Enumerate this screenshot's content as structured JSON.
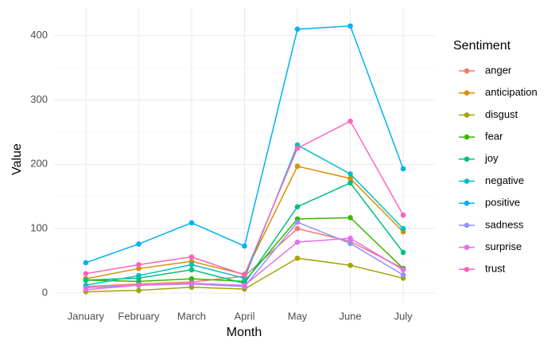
{
  "chart_data": {
    "type": "line",
    "x_label": "Month",
    "y_label": "Value",
    "legend_title": "Sentiment",
    "legend_position": "right",
    "grid": true,
    "categories": [
      "January",
      "February",
      "March",
      "April",
      "May",
      "June",
      "July"
    ],
    "ylim": [
      -15,
      443
    ],
    "yticks": [
      0,
      100,
      200,
      300,
      400
    ],
    "series": [
      {
        "name": "anger",
        "color": "#F8766D",
        "values": [
          10,
          14,
          17,
          26,
          100,
          80,
          38
        ]
      },
      {
        "name": "anticipation",
        "color": "#D89000",
        "values": [
          22,
          38,
          49,
          29,
          197,
          178,
          95
        ]
      },
      {
        "name": "disgust",
        "color": "#A3A500",
        "values": [
          2,
          4,
          9,
          6,
          54,
          43,
          23
        ]
      },
      {
        "name": "fear",
        "color": "#39B600",
        "values": [
          20,
          18,
          22,
          18,
          115,
          117,
          38
        ]
      },
      {
        "name": "joy",
        "color": "#00BF7D",
        "values": [
          20,
          23,
          36,
          15,
          134,
          171,
          63
        ]
      },
      {
        "name": "negative",
        "color": "#00BFC4",
        "values": [
          12,
          27,
          44,
          23,
          230,
          185,
          100
        ]
      },
      {
        "name": "positive",
        "color": "#00B0F6",
        "values": [
          47,
          76,
          109,
          73,
          410,
          415,
          193
        ]
      },
      {
        "name": "sadness",
        "color": "#9590FF",
        "values": [
          8,
          12,
          14,
          10,
          110,
          77,
          28
        ]
      },
      {
        "name": "surprise",
        "color": "#E76BF3",
        "values": [
          5,
          12,
          15,
          12,
          79,
          85,
          36
        ]
      },
      {
        "name": "trust",
        "color": "#FF62BC",
        "values": [
          30,
          44,
          56,
          28,
          225,
          267,
          121
        ]
      }
    ]
  }
}
